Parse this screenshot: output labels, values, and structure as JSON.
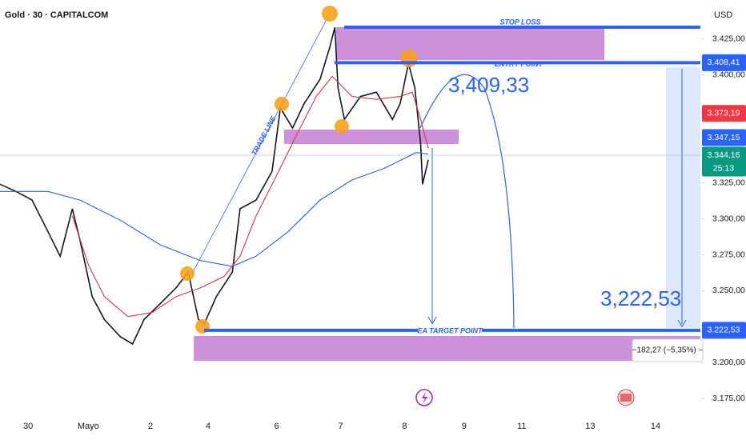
{
  "header": {
    "title": "Gold · 30 · CAPITALCOM",
    "currency": "USD"
  },
  "chart_data": {
    "type": "line",
    "xlim": [
      -0.44,
      10.5
    ],
    "ylim": [
      3163,
      3452
    ],
    "xticks": [
      {
        "value": 0,
        "label": "30"
      },
      {
        "value": 0.94,
        "label": "Mayo"
      },
      {
        "value": 1.91,
        "label": "2"
      },
      {
        "value": 2.81,
        "label": "4"
      },
      {
        "value": 3.88,
        "label": "6"
      },
      {
        "value": 4.88,
        "label": "7"
      },
      {
        "value": 5.88,
        "label": "8"
      },
      {
        "value": 6.81,
        "label": "9"
      },
      {
        "value": 7.71,
        "label": "11"
      },
      {
        "value": 8.78,
        "label": "13"
      },
      {
        "value": 9.8,
        "label": "14"
      }
    ],
    "yticks": [
      {
        "value": 3425,
        "label": "3.425,00"
      },
      {
        "value": 3400,
        "label": "3.400,00"
      },
      {
        "value": 3325,
        "label": "3.325,00"
      },
      {
        "value": 3300,
        "label": "3.300,00"
      },
      {
        "value": 3275,
        "label": "3.275,00"
      },
      {
        "value": 3250,
        "label": "3.250,00"
      },
      {
        "value": 3200,
        "label": "3.200,00"
      },
      {
        "value": 3175,
        "label": "3.175,00"
      }
    ],
    "series": [
      {
        "color": "#131722",
        "x": [
          -0.44,
          -0.19,
          0.06,
          0.31,
          0.5,
          0.69,
          0.81,
          1.0,
          1.19,
          1.44,
          1.63,
          1.81,
          2.06,
          2.31,
          2.5,
          2.66,
          2.75,
          2.94,
          3.19,
          3.31,
          3.56,
          3.81,
          3.94,
          4.13,
          4.31,
          4.56,
          4.71,
          4.79,
          4.84,
          4.94,
          5.19,
          5.44,
          5.69,
          5.81,
          5.94,
          6.04,
          6.13,
          6.16,
          6.25
        ],
        "values": [
          3324,
          3319,
          3313,
          3291,
          3274,
          3307,
          3285,
          3246,
          3230,
          3218,
          3213,
          3230,
          3241,
          3252,
          3263,
          3230,
          3227,
          3246,
          3263,
          3307,
          3313,
          3333,
          3377,
          3363,
          3380,
          3397,
          3419,
          3433,
          3391,
          3369,
          3385,
          3388,
          3369,
          3380,
          3408,
          3391,
          3352,
          3324,
          3341
        ]
      },
      {
        "color": "#e0323e",
        "x": [
          0.69,
          0.94,
          1.19,
          1.56,
          1.94,
          2.31,
          2.69,
          3.06,
          3.31,
          3.56,
          3.88,
          4.19,
          4.5,
          4.75,
          5.06,
          5.44,
          5.81,
          6.0,
          6.13,
          6.25
        ],
        "values": [
          3302,
          3268,
          3246,
          3232,
          3235,
          3246,
          3252,
          3260,
          3274,
          3302,
          3330,
          3358,
          3385,
          3399,
          3385,
          3383,
          3385,
          3388,
          3369,
          3349
        ]
      },
      {
        "color": "#2f5fd0",
        "x": [
          -0.44,
          0.31,
          0.81,
          1.44,
          2.06,
          2.69,
          3.19,
          3.56,
          4.06,
          4.56,
          5.06,
          5.56,
          6.06,
          6.25
        ],
        "values": [
          3319,
          3319,
          3313,
          3299,
          3282,
          3271,
          3267,
          3274,
          3291,
          3313,
          3327,
          3335,
          3346,
          3345
        ]
      }
    ],
    "levels": [
      {
        "value": 3408.41,
        "label": "3.408,41",
        "text": "ENTRY POINT",
        "color": "#2962ff"
      },
      {
        "value": 3222.53,
        "label": "3.222,53",
        "text": "EA TARGET POINT",
        "color": "#2962ff"
      }
    ],
    "price_tags": [
      {
        "value": 3373.19,
        "label": "3.373,19",
        "color": "#f23645"
      },
      {
        "value": 3347.15,
        "label": "3.347,15",
        "color": "#2962ff"
      },
      {
        "value": 3344.16,
        "label": "3.344,16",
        "color": "#089981",
        "countdown": "25:13"
      }
    ],
    "annotations": {
      "stop_loss": "STOP LOSS",
      "trade_line": "TRADE LINE",
      "projection": "3,409,33",
      "target": "3,222,53",
      "change": "−182,27 (−5,35%) −"
    }
  }
}
